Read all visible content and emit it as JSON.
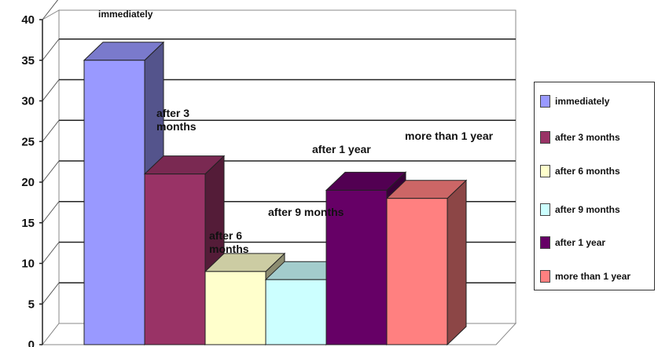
{
  "chart_data": {
    "type": "bar",
    "categories": [
      "immediately",
      "after 3 months",
      "after 6 months",
      "after 9 months",
      "after 1 year",
      "more than 1 year"
    ],
    "values": [
      35,
      21,
      9,
      8,
      19,
      18
    ],
    "data_labels": [
      "immediately",
      "after 3 months",
      "after 6 months",
      "after 9 months",
      "after 1 year",
      "more than 1 year"
    ],
    "ylim": [
      0,
      40
    ],
    "y_ticks": [
      "0",
      "5",
      "10",
      "15",
      "20",
      "25",
      "30",
      "35",
      "40"
    ],
    "grid": true,
    "legend_position": "right",
    "three_d": true,
    "colors": [
      "#9999ff",
      "#993366",
      "#ffffcc",
      "#ccffff",
      "#660066",
      "#ff8080"
    ]
  },
  "legend": {
    "items": [
      "immediately",
      "after 3 months",
      "after 6 months",
      "after 9 months",
      "after 1 year",
      "more than 1 year"
    ]
  }
}
